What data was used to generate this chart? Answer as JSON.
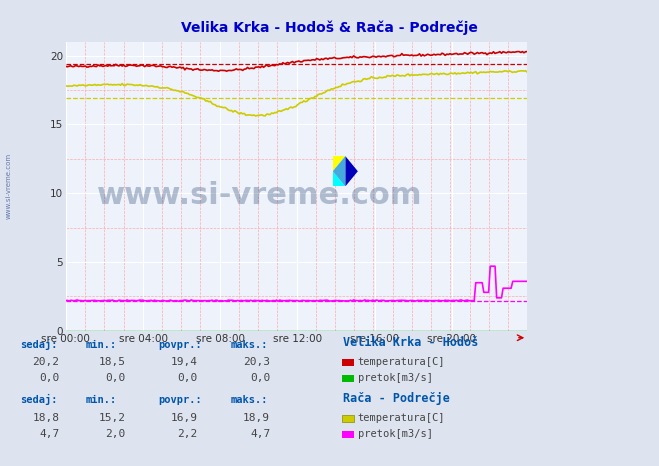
{
  "title": "Velika Krka - Hodoš & Rača - Podrečje",
  "title_color": "#0000cc",
  "bg_color": "#dde4f0",
  "plot_bg_color": "#eef2fa",
  "grid_color_major": "#ffffff",
  "grid_color_minor": "#ffaaaa",
  "ylim": [
    0,
    21
  ],
  "yticks": [
    0,
    5,
    10,
    15,
    20
  ],
  "xlim": [
    0,
    287
  ],
  "xtick_labels": [
    "sre 00:00",
    "sre 04:00",
    "sre 08:00",
    "sre 12:00",
    "sre 16:00",
    "sre 20:00"
  ],
  "xtick_positions": [
    0,
    48,
    96,
    144,
    192,
    240
  ],
  "n_points": 288,
  "hodosh_temp_color": "#cc0000",
  "hodosh_pretok_color": "#00bb00",
  "raca_temp_color": "#cccc00",
  "raca_pretok_color": "#ff00ff",
  "hodosh_temp_avg": 19.4,
  "hodosh_temp_min": 18.5,
  "hodosh_temp_max": 20.3,
  "hodosh_temp_sedaj": 20.2,
  "hodosh_pretok_avg": 0.0,
  "hodosh_pretok_min": 0.0,
  "hodosh_pretok_max": 0.0,
  "hodosh_pretok_sedaj": 0.0,
  "raca_temp_avg": 16.9,
  "raca_temp_min": 15.2,
  "raca_temp_max": 18.9,
  "raca_temp_sedaj": 18.8,
  "raca_pretok_avg": 2.2,
  "raca_pretok_min": 2.0,
  "raca_pretok_max": 4.7,
  "raca_pretok_sedaj": 4.7,
  "watermark": "www.si-vreme.com",
  "watermark_color": "#1a3a6a",
  "watermark_alpha": 0.3,
  "side_watermark_color": "#6677aa",
  "table_header_color": "#0055aa",
  "table_value_color": "#444444"
}
